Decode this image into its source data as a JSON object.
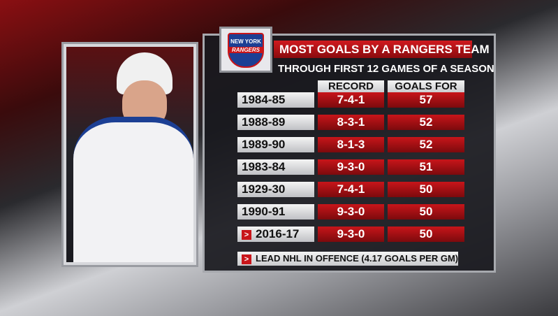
{
  "logo": {
    "line1": "NEW YORK",
    "line2": "RANGERS"
  },
  "header": {
    "title": "MOST GOALS BY A RANGERS TEAM",
    "subtitle": "THROUGH FIRST 12 GAMES OF A SEASON"
  },
  "table": {
    "columns": [
      "RECORD",
      "GOALS FOR"
    ],
    "rows": [
      [
        "1984-85",
        "7-4-1",
        57
      ],
      [
        "1988-89",
        "8-3-1",
        52
      ],
      [
        "1989-90",
        "8-1-3",
        52
      ],
      [
        "1983-84",
        "9-3-0",
        51
      ],
      [
        "1929-30",
        "7-4-1",
        50
      ],
      [
        "1990-91",
        "9-3-0",
        50
      ],
      [
        "2016-17",
        "9-3-0",
        50
      ]
    ]
  },
  "footer": {
    "note": "LEAD NHL IN OFFENCE (4.17 GOALS PER GM)"
  }
}
